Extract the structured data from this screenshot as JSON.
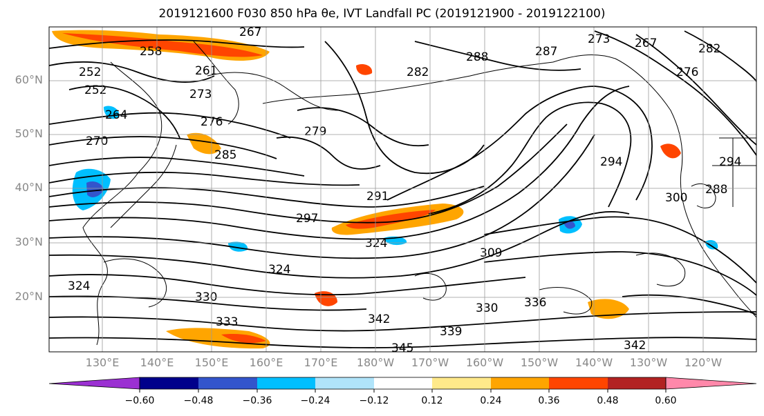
{
  "title": "2019121600 F030 850 hPa θe, IVT Landfall PC (2019121900 - 2019122100)",
  "lat_ticks": [
    "60°N",
    "50°N",
    "40°N",
    "30°N",
    "20°N"
  ],
  "lon_ticks": [
    "130°E",
    "140°E",
    "150°E",
    "160°E",
    "170°E",
    "180°W",
    "170°W",
    "160°W",
    "150°W",
    "140°W",
    "130°W",
    "120°W"
  ],
  "colorbar": {
    "colors": [
      "#9b30d2",
      "#00008b",
      "#3355cc",
      "#00bfff",
      "#b0e4fa",
      "#ffffff",
      "#ffe98a",
      "#ffa500",
      "#ff4500",
      "#b22222",
      "#ff88aa"
    ],
    "ticks": [
      "−0.60",
      "−0.48",
      "−0.36",
      "−0.24",
      "−0.12",
      "0.12",
      "0.24",
      "0.36",
      "0.48",
      "0.60"
    ]
  },
  "contour_labels": [
    "267",
    "258",
    "252",
    "252",
    "261",
    "273",
    "276",
    "279",
    "285",
    "288",
    "282",
    "287",
    "273",
    "267",
    "276",
    "291",
    "297",
    "300",
    "294",
    "324",
    "309",
    "324",
    "330",
    "333",
    "342",
    "339",
    "342",
    "330",
    "336",
    "345",
    "324",
    "294",
    "288",
    "270",
    "264",
    "282"
  ]
}
